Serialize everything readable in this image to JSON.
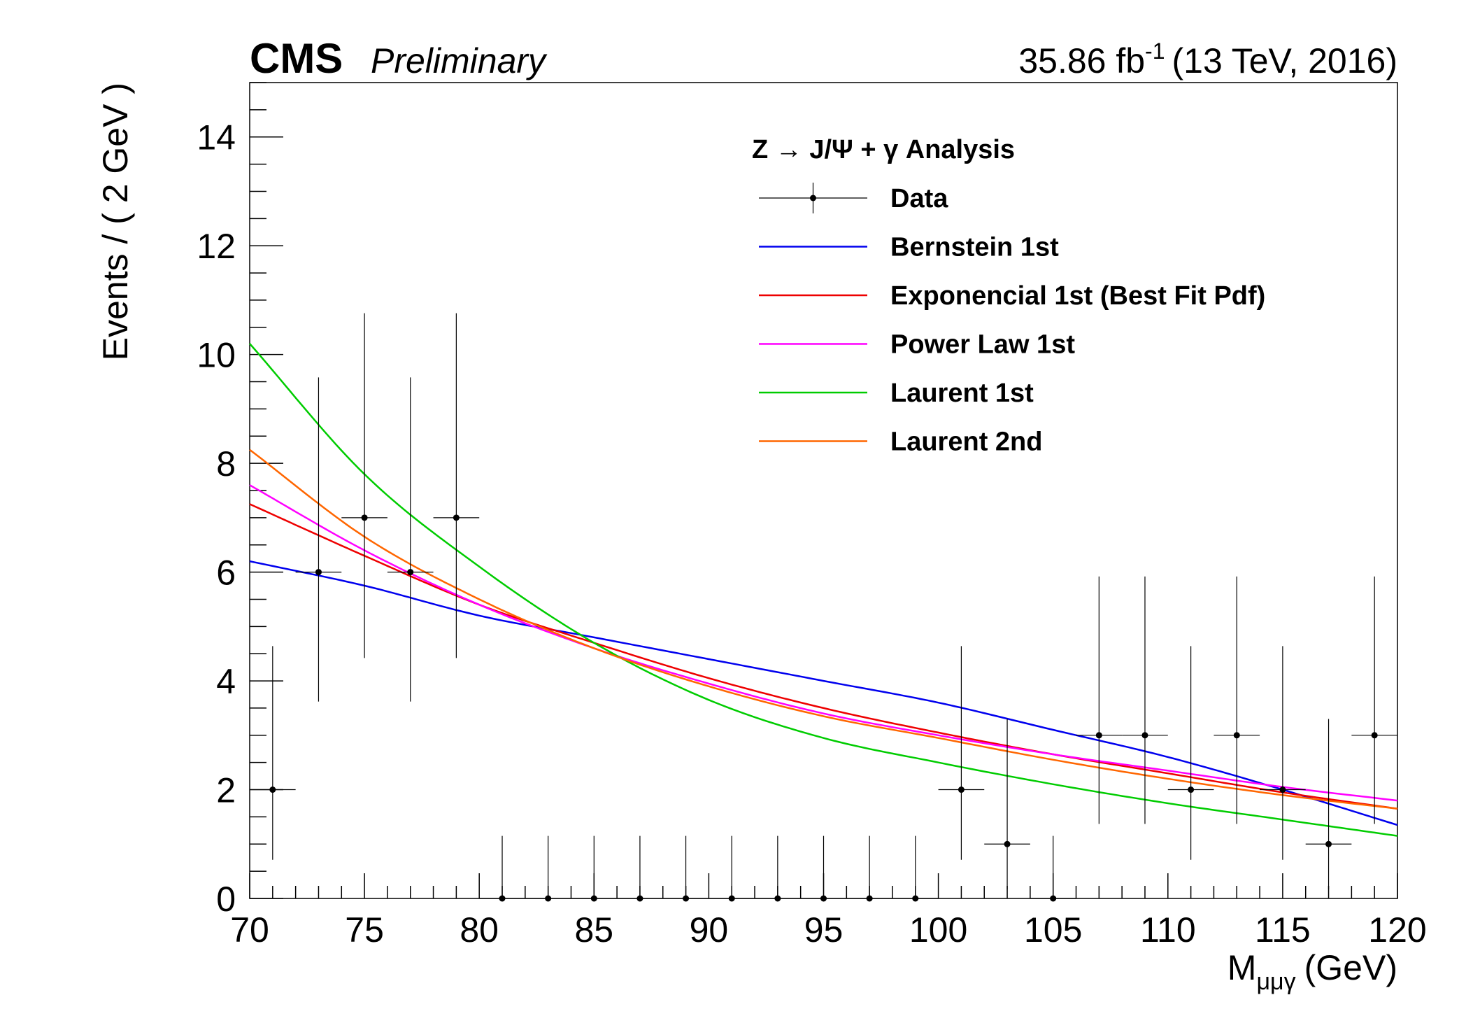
{
  "header": {
    "experiment": "CMS",
    "status": "Preliminary",
    "lumi_value": "35.86 fb",
    "lumi_exp": "-1",
    "energy": "(13 TeV, 2016)"
  },
  "chart_data": {
    "type": "scatter",
    "xlabel_main": "M",
    "xlabel_sub": "μμγ",
    "xlabel_unit": "(GeV)",
    "ylabel": "Events / ( 2 GeV )",
    "xlim": [
      70,
      120
    ],
    "ylim": [
      0,
      15
    ],
    "xticks": [
      70,
      75,
      80,
      85,
      90,
      95,
      100,
      105,
      110,
      115,
      120
    ],
    "yticks": [
      0,
      2,
      4,
      6,
      8,
      10,
      12,
      14
    ],
    "bin_width": 2,
    "legend": {
      "title": "Z → J/Ψ + γ Analysis",
      "placement": "top-right"
    },
    "data": {
      "name": "Data",
      "color": "#000000",
      "x": [
        71,
        73,
        75,
        77,
        79,
        81,
        83,
        85,
        87,
        89,
        91,
        93,
        95,
        97,
        99,
        101,
        103,
        105,
        107,
        109,
        111,
        113,
        115,
        117,
        119
      ],
      "y": [
        2,
        6,
        7,
        6,
        7,
        0,
        0,
        0,
        0,
        0,
        0,
        0,
        0,
        0,
        0,
        2,
        1,
        0,
        3,
        3,
        2,
        3,
        2,
        1,
        3
      ],
      "y_err_low": [
        1.29,
        2.38,
        2.58,
        2.38,
        2.58,
        0,
        0,
        0,
        0,
        0,
        0,
        0,
        0,
        0,
        0,
        1.29,
        0.83,
        0,
        1.63,
        1.63,
        1.29,
        1.63,
        1.29,
        0.83,
        1.63
      ],
      "y_err_high": [
        2.64,
        3.58,
        3.76,
        3.58,
        3.76,
        1.15,
        1.15,
        1.15,
        1.15,
        1.15,
        1.15,
        1.15,
        1.15,
        1.15,
        1.15,
        2.64,
        2.3,
        1.15,
        2.92,
        2.92,
        2.64,
        2.92,
        2.64,
        2.3,
        2.92
      ]
    },
    "series": [
      {
        "name": "Bernstein 1st",
        "color": "#0000ee",
        "x": [
          70,
          75,
          80,
          85,
          90,
          95,
          100,
          105,
          110,
          115,
          120
        ],
        "y": [
          6.2,
          5.75,
          5.2,
          4.8,
          4.4,
          4.0,
          3.6,
          3.1,
          2.6,
          2.0,
          1.35
        ]
      },
      {
        "name": "Exponencial 1st (Best Fit Pdf)",
        "color": "#ee0000",
        "x": [
          70,
          75,
          80,
          85,
          90,
          95,
          100,
          105,
          110,
          115,
          120
        ],
        "y": [
          7.25,
          6.3,
          5.4,
          4.7,
          4.05,
          3.5,
          3.05,
          2.65,
          2.3,
          1.95,
          1.65
        ]
      },
      {
        "name": "Power Law 1st",
        "color": "#ff00ff",
        "x": [
          70,
          75,
          80,
          85,
          90,
          95,
          100,
          105,
          110,
          115,
          120
        ],
        "y": [
          7.6,
          6.4,
          5.4,
          4.6,
          3.95,
          3.4,
          3.0,
          2.65,
          2.35,
          2.05,
          1.8
        ]
      },
      {
        "name": "Laurent 1st",
        "color": "#00cc00",
        "x": [
          70,
          75,
          80,
          85,
          90,
          95,
          100,
          105,
          110,
          115,
          120
        ],
        "y": [
          10.2,
          7.8,
          6.1,
          4.7,
          3.65,
          2.95,
          2.5,
          2.1,
          1.75,
          1.45,
          1.15
        ]
      },
      {
        "name": "Laurent 2nd",
        "color": "#ff6600",
        "x": [
          70,
          75,
          80,
          85,
          90,
          95,
          100,
          105,
          110,
          115,
          120
        ],
        "y": [
          8.25,
          6.65,
          5.5,
          4.6,
          3.9,
          3.35,
          2.95,
          2.55,
          2.2,
          1.9,
          1.65
        ]
      }
    ]
  }
}
